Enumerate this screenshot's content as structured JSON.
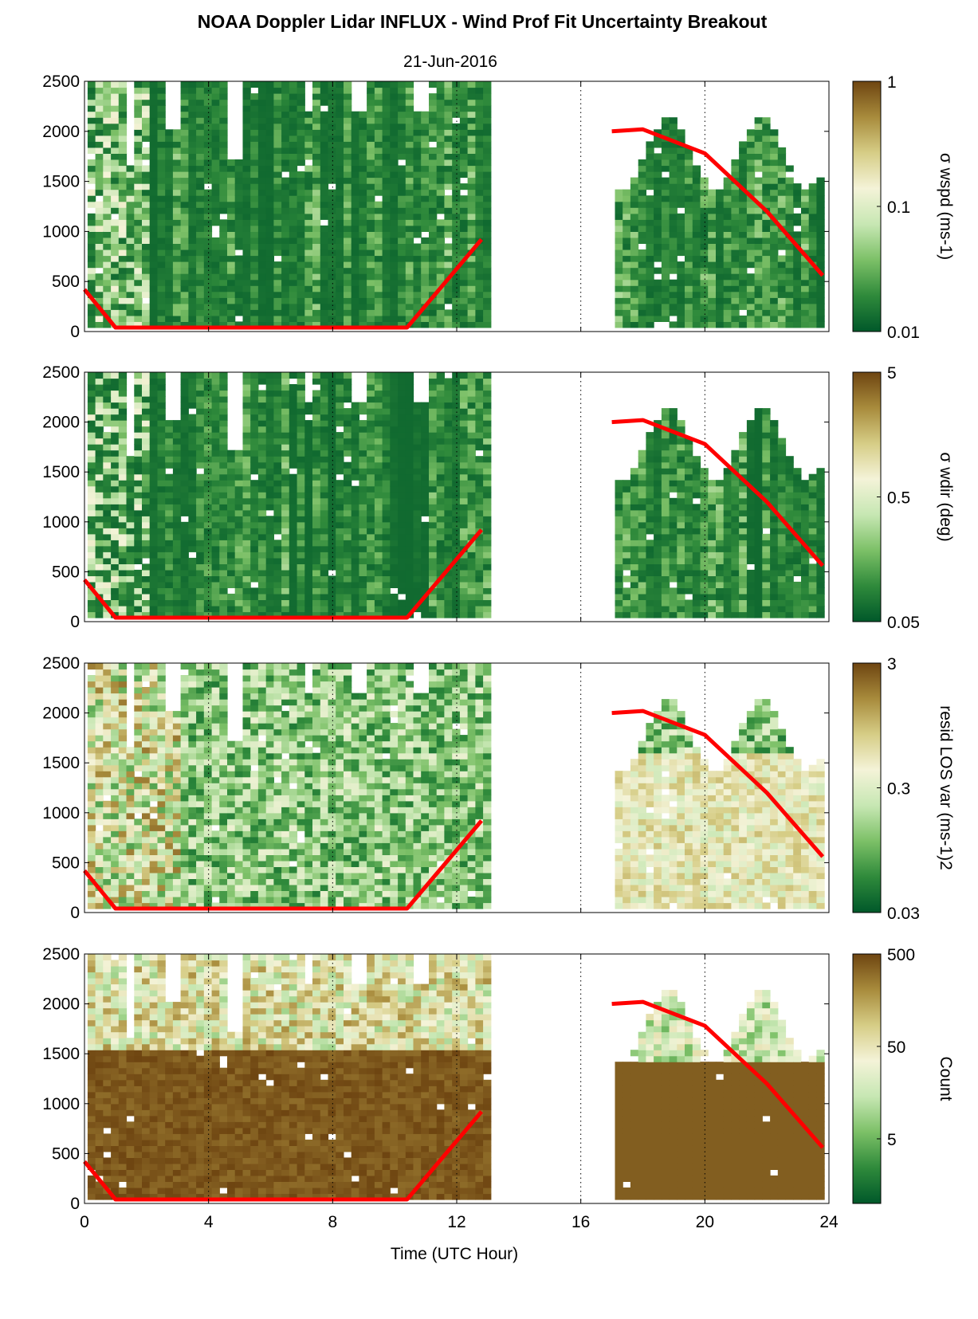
{
  "title": "NOAA Doppler Lidar INFLUX - Wind Prof Fit Uncertainty Breakout",
  "subtitle": "21-Jun-2016",
  "xlabel": "Time (UTC Hour)",
  "x_ticks": [
    "0",
    "4",
    "8",
    "12",
    "16",
    "20",
    "24"
  ],
  "y_ticks": [
    "0",
    "500",
    "1000",
    "1500",
    "2000",
    "2500"
  ],
  "colors": {
    "colormap": [
      "#00582a",
      "#2f8a3b",
      "#7cc067",
      "#c7e7b3",
      "#f4f3d8",
      "#d6cd86",
      "#a88b3c",
      "#6e4511"
    ],
    "overlay_line": "#ff0000",
    "no_data": "#ffffff"
  },
  "chart_data": [
    {
      "type": "heatmap",
      "panel": 1,
      "colorbar_label": "σ wspd (ms-1)",
      "colorbar_ticks": [
        "0.01",
        "0.1",
        "1"
      ],
      "color_scale": "log",
      "clim": [
        0.01,
        1
      ],
      "xlim": [
        0,
        24
      ],
      "ylim": [
        0,
        2500
      ],
      "grid": "vertical dotted lines every 4 h",
      "data_gaps_hours": [
        [
          13,
          17
        ]
      ],
      "overlay_line": {
        "x": [
          0,
          1,
          10.4,
          12.8,
          17,
          18,
          20,
          22,
          23.8
        ],
        "y": [
          420,
          40,
          40,
          920,
          2000,
          2020,
          1780,
          1200,
          560
        ]
      }
    },
    {
      "type": "heatmap",
      "panel": 2,
      "colorbar_label": "σ wdir (deg)",
      "colorbar_ticks": [
        "0.05",
        "0.5",
        "5"
      ],
      "color_scale": "log",
      "clim": [
        0.05,
        5
      ],
      "xlim": [
        0,
        24
      ],
      "ylim": [
        0,
        2500
      ],
      "grid": "vertical dotted lines every 4 h",
      "data_gaps_hours": [
        [
          13,
          17
        ]
      ],
      "overlay_line": {
        "x": [
          0,
          1,
          10.4,
          12.8,
          17,
          18,
          20,
          22,
          23.8
        ],
        "y": [
          420,
          40,
          40,
          920,
          2000,
          2020,
          1780,
          1200,
          560
        ]
      }
    },
    {
      "type": "heatmap",
      "panel": 3,
      "colorbar_label": "resid LOS var (ms-1)2",
      "colorbar_ticks": [
        "0.03",
        "0.3",
        "3"
      ],
      "color_scale": "log",
      "clim": [
        0.03,
        3
      ],
      "xlim": [
        0,
        24
      ],
      "ylim": [
        0,
        2500
      ],
      "grid": "vertical dotted lines every 4 h",
      "data_gaps_hours": [
        [
          13,
          17
        ]
      ],
      "overlay_line": {
        "x": [
          0,
          1,
          10.4,
          12.8,
          17,
          18,
          20,
          22,
          23.8
        ],
        "y": [
          420,
          40,
          40,
          920,
          2000,
          2020,
          1780,
          1200,
          560
        ]
      }
    },
    {
      "type": "heatmap",
      "panel": 4,
      "colorbar_label": "Count",
      "colorbar_ticks": [
        "5",
        "50",
        "500"
      ],
      "color_scale": "log",
      "clim": [
        1,
        500
      ],
      "xlim": [
        0,
        24
      ],
      "ylim": [
        0,
        2500
      ],
      "grid": "vertical dotted lines every 4 h",
      "data_gaps_hours": [
        [
          13,
          17
        ]
      ],
      "overlay_line": {
        "x": [
          0,
          1,
          10.4,
          12.8,
          17,
          18,
          20,
          22,
          23.8
        ],
        "y": [
          420,
          40,
          40,
          920,
          2000,
          2020,
          1780,
          1200,
          560
        ]
      }
    }
  ]
}
